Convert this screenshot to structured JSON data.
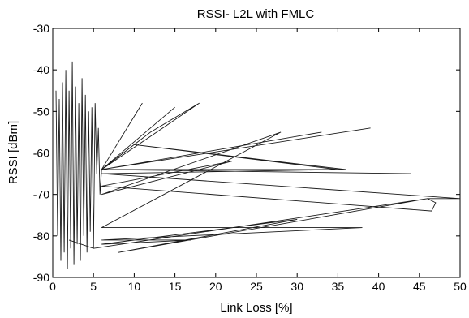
{
  "chart_data": {
    "type": "line",
    "title": "RSSI- L2L with FMLC",
    "xlabel": "Link Loss [%]",
    "ylabel": "RSSI [dBm]",
    "xlim": [
      0,
      50
    ],
    "ylim": [
      -90,
      -30
    ],
    "x_ticks": [
      "0",
      "5",
      "10",
      "15",
      "20",
      "25",
      "30",
      "35",
      "40",
      "45",
      "50"
    ],
    "y_ticks": [
      "-30",
      "-40",
      "-50",
      "-60",
      "-70",
      "-80",
      "-90"
    ],
    "grid": false,
    "legend": "none",
    "series_color": "#1a1a1a",
    "series": [
      {
        "x": [
          0.4,
          0.6,
          0.8,
          1.0,
          1.2,
          1.4,
          1.6,
          1.8,
          2.0,
          2.2,
          2.4,
          2.6,
          2.8,
          3.0,
          3.2,
          3.4,
          3.6,
          3.8,
          4.0,
          4.2,
          4.4,
          4.6,
          4.8,
          5.0,
          5.2,
          5.4,
          5.6,
          5.8,
          6.0,
          11.0,
          6.0,
          15.0,
          6.0,
          18.0,
          12.0,
          6.0,
          39.0,
          6.0,
          33.0,
          6.0,
          44.0,
          6.0,
          36.0,
          10.0,
          35.0,
          6.0,
          50.0,
          46.0,
          47.0,
          46.5,
          6.0,
          22.0,
          6.0,
          28.0,
          6.0,
          38.0,
          6.0,
          14.0,
          17.0,
          6.0,
          30.0,
          8.0,
          46.0,
          5.0,
          2.0
        ],
        "y": [
          -45,
          -80,
          -47,
          -86,
          -43,
          -84,
          -40,
          -88,
          -45,
          -83,
          -38,
          -87,
          -44,
          -82,
          -48,
          -86,
          -42,
          -80,
          -46,
          -84,
          -50,
          -79,
          -49,
          -83,
          -48,
          -65,
          -54,
          -70,
          -64,
          -48,
          -64,
          -49,
          -64,
          -48,
          -55,
          -64,
          -54,
          -64,
          -55,
          -64,
          -65,
          -64,
          -64,
          -58,
          -64,
          -65,
          -71,
          -71,
          -72,
          -74,
          -68,
          -62,
          -70,
          -55,
          -78,
          -78,
          -81,
          -81,
          -81,
          -82,
          -76,
          -84,
          -71,
          -83,
          -81
        ]
      }
    ]
  }
}
